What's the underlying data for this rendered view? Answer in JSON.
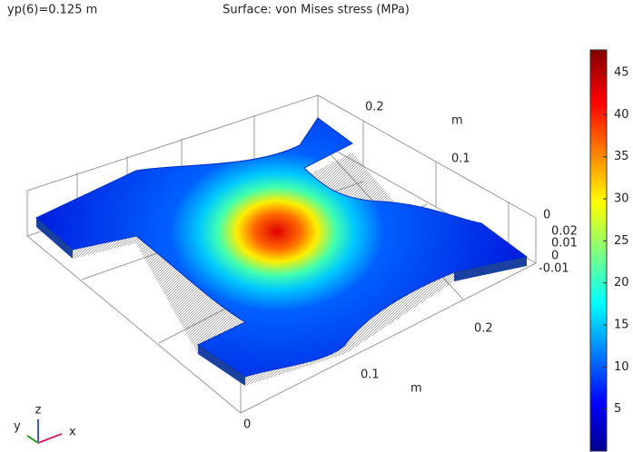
{
  "chart_data": {
    "type": "surface",
    "title": "Surface: von Mises stress (MPa)",
    "parameter": "yp(6)=0.125 m",
    "colorbar": {
      "clim": [
        0,
        47.7
      ],
      "ticks": [
        5,
        10,
        15,
        20,
        25,
        30,
        35,
        40,
        45
      ]
    },
    "axes": {
      "x": {
        "label": "m",
        "ticks": [
          0.2,
          0.1,
          0
        ]
      },
      "y": {
        "label": "m",
        "ticks": [
          0.2,
          0.1,
          0
        ]
      },
      "z": {
        "ticks": [
          0.02,
          0.01,
          0,
          -0.01
        ]
      }
    },
    "triad": {
      "x": "x",
      "y": "y",
      "z": "z"
    }
  }
}
